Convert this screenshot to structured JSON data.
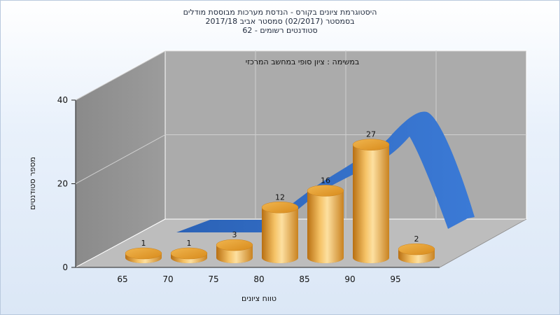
{
  "chart_data": {
    "type": "bar",
    "title_lines": [
      "היסטוגרמת ציונים בקורס - הנדסת מערכות מבוססת מודלים",
      "בסמסטר  (02/2017)  סמסטר אביב 2017/18",
      "סטודנטים רשומים - 62"
    ],
    "inner_title": "במשימה : ציון סופי במחשב המרכזי",
    "xlabel": "טווח ציונים",
    "ylabel": "מספר סטודנטים",
    "categories": [
      "65",
      "70",
      "75",
      "80",
      "85",
      "90",
      "95"
    ],
    "values": [
      1,
      1,
      3,
      12,
      16,
      27,
      2
    ],
    "data_labels": [
      "1",
      "1",
      "3",
      "12",
      "16",
      "27",
      "2"
    ],
    "y_ticks": [
      "0",
      "20",
      "40"
    ],
    "ylim": [
      0,
      40
    ],
    "series": [
      {
        "name": "",
        "type": "bar",
        "values": [
          1,
          1,
          3,
          12,
          16,
          27,
          2
        ]
      }
    ],
    "colors": {
      "bar": "#e8a23a",
      "curve": "#2f6fc6",
      "wall": "#a9a9a9",
      "floor": "#bdbdbd"
    },
    "grid": true
  }
}
